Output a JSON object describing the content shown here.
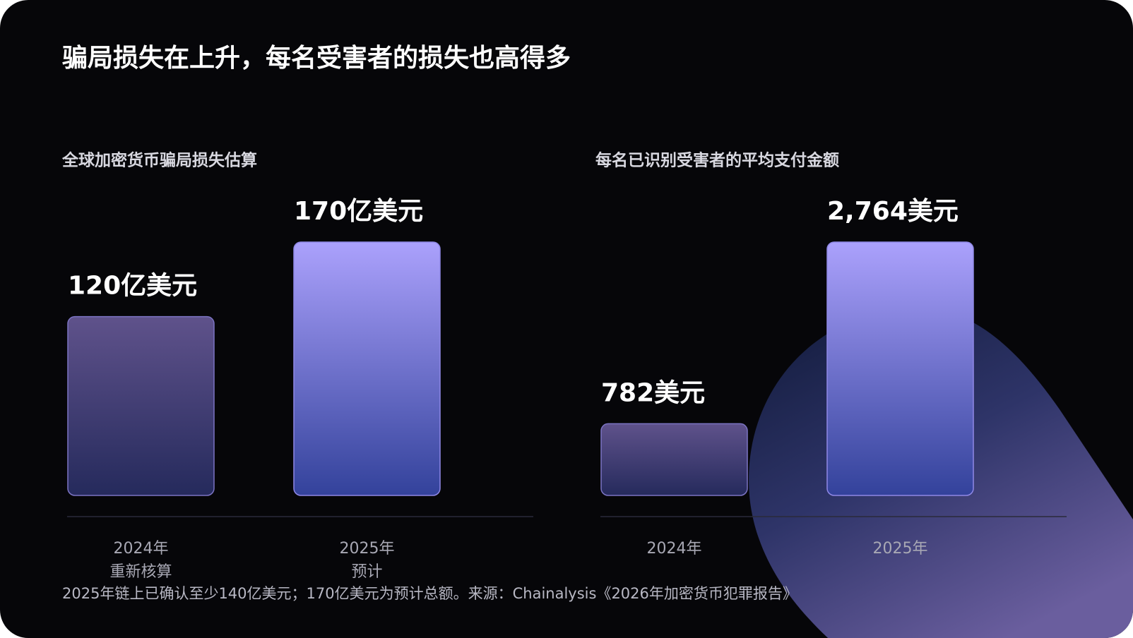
{
  "title": "骗局损失在上升，每名受害者的损失也高得多",
  "footnote": "2025年链上已确认至少140亿美元；170亿美元为预计总额。来源：Chainalysis《2026年加密货币犯罪报告》",
  "chart_data": [
    {
      "type": "bar",
      "title": "全球加密货币骗局损失估算",
      "categories": [
        "2024年",
        "2025年"
      ],
      "sublabels": [
        "重新核算",
        "预计"
      ],
      "values": [
        120,
        170
      ],
      "value_labels": [
        "120亿美元",
        "170亿美元"
      ],
      "colors": [
        [
          "#5f528b",
          "#252a5c"
        ],
        [
          "#aba1fc",
          "#33429b"
        ]
      ]
    },
    {
      "type": "bar",
      "title": "每名已识别受害者的平均支付金额",
      "categories": [
        "2024年",
        "2025年"
      ],
      "values": [
        782,
        2764
      ],
      "value_labels": [
        "782美元",
        "2,764美元"
      ],
      "colors": [
        [
          "#5f528b",
          "#252a5c"
        ],
        [
          "#aba1fc",
          "#33429b"
        ]
      ]
    }
  ]
}
